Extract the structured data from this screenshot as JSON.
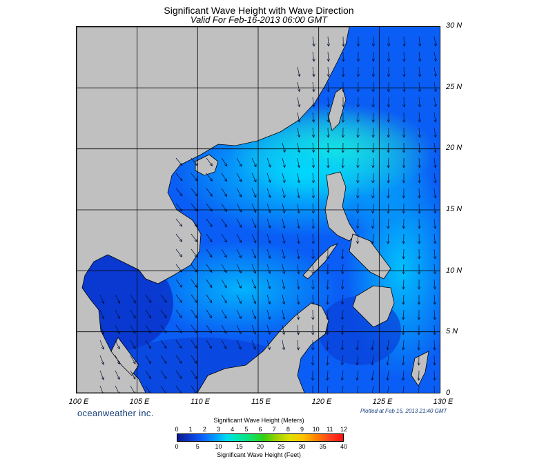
{
  "header": {
    "title": "Significant Wave Height with Wave Direction",
    "subtitle": "Valid For Feb-16-2013 06:00 GMT"
  },
  "axes": {
    "lat_labels": [
      "30 N",
      "25 N",
      "20 N",
      "15 N",
      "10 N",
      "5 N",
      "0"
    ],
    "lon_labels": [
      "100 E",
      "105 E",
      "110 E",
      "115 E",
      "120 E",
      "125 E",
      "130 E"
    ],
    "lat_range": [
      0,
      30
    ],
    "lon_range": [
      100,
      130
    ]
  },
  "footer": {
    "brand": "oceanweather inc.",
    "plotted": "Plotted at Feb 15, 2013 21:40 GMT"
  },
  "legend": {
    "title_meters": "Significant Wave Height (Meters)",
    "title_feet": "Significant Wave Height (Feet)",
    "meters_ticks": [
      "0",
      "1",
      "2",
      "3",
      "4",
      "5",
      "6",
      "7",
      "8",
      "9",
      "10",
      "11",
      "12"
    ],
    "feet_ticks": [
      "0",
      "5",
      "10",
      "15",
      "20",
      "25",
      "30",
      "35",
      "40"
    ]
  },
  "colors": {
    "land": "#c0c0c0",
    "water_deep": "#0a3ad0",
    "water_mid": "#0a70ff",
    "water_high": "#00d8ff",
    "water_peak": "#20f0c0"
  }
}
